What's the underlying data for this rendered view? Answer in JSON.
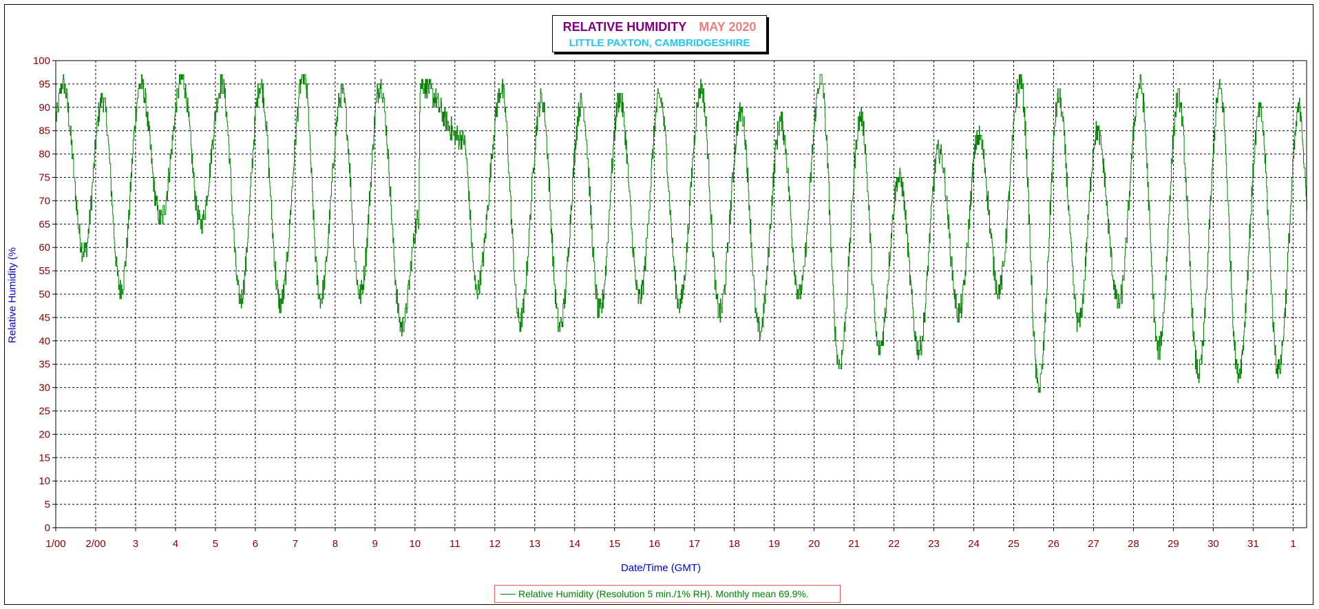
{
  "chart_data": {
    "type": "line",
    "title": "RELATIVE HUMIDITY",
    "title_date": "MAY 2020",
    "subtitle": "LITTLE PAXTON, CAMBRIDGESHIRE",
    "xlabel": "Date/Time (GMT)",
    "ylabel": "Relative Humidity (%",
    "ylim": [
      0,
      100
    ],
    "xlim": [
      0,
      31.35
    ],
    "grid": true,
    "legend_position": "bottom-center",
    "y_ticks": [
      "0",
      "5",
      "10",
      "15",
      "20",
      "25",
      "30",
      "35",
      "40",
      "45",
      "50",
      "55",
      "60",
      "65",
      "70",
      "75",
      "80",
      "85",
      "90",
      "95",
      "100"
    ],
    "x_ticks": [
      "1/00",
      "2/00",
      "3",
      "4",
      "5",
      "6",
      "7",
      "8",
      "9",
      "10",
      "11",
      "12",
      "13",
      "14",
      "15",
      "16",
      "17",
      "18",
      "19",
      "20",
      "21",
      "22",
      "23",
      "24",
      "25",
      "26",
      "27",
      "28",
      "29",
      "30",
      "31",
      "1"
    ],
    "colors": {
      "series": "#008000",
      "axis_labels": "#8b0000",
      "axis_title": "#0000cd"
    },
    "series": [
      {
        "name": "Relative Humidity (Resolution 5 min./1% RH). Monthly mean 69.9%.",
        "daily_min": [
          59,
          51,
          66,
          65,
          49,
          48,
          49,
          50,
          43,
          66,
          51,
          44,
          43,
          46,
          49,
          48,
          46,
          42,
          50,
          35,
          38,
          38,
          46,
          51,
          30,
          44,
          48,
          38,
          33,
          33,
          34
        ],
        "daily_max": [
          95,
          92,
          95,
          96,
          95,
          95,
          97,
          93,
          95,
          95,
          83,
          94,
          92,
          91,
          92,
          92,
          94,
          89,
          87,
          96,
          88,
          75,
          81,
          84,
          96,
          92,
          85,
          95,
          92,
          94,
          89
        ],
        "min_hour": [
          17,
          15,
          15,
          15,
          15,
          15,
          15,
          15,
          16,
          2,
          13,
          15,
          15,
          15,
          15,
          15,
          15,
          15,
          15,
          15,
          15,
          15,
          15,
          15,
          15,
          15,
          15,
          15,
          15,
          15,
          15
        ],
        "max_hour": [
          4,
          4,
          3,
          4,
          4,
          3,
          5,
          4,
          3,
          3,
          5,
          4,
          4,
          4,
          3,
          3,
          4,
          4,
          4,
          4,
          4,
          3,
          3,
          3,
          4,
          3,
          2,
          4,
          3,
          4,
          4
        ],
        "end_value_1st": 70
      }
    ]
  }
}
